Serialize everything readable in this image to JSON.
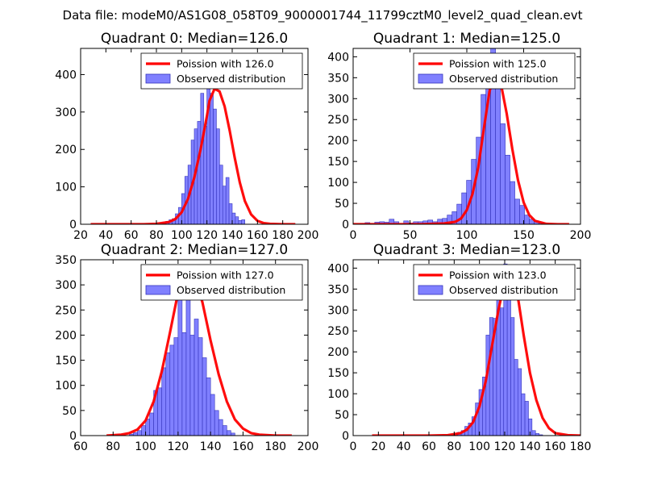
{
  "figure": {
    "title": "Data file: modeM0/AS1G08_058T09_9000001744_11799cztM0_level2_quad_clean.evt"
  },
  "colors": {
    "bar_fill": "#8080ff",
    "bar_edge": "#3333bb",
    "curve": "#ff0000",
    "axes": "#000000"
  },
  "chart_data": [
    {
      "type": "bar",
      "title": "Quadrant 0: Median=126.0",
      "legend": [
        "Poission with 126.0",
        "Observed distribution"
      ],
      "legend_loc": "top-right",
      "xlim": [
        20,
        200
      ],
      "ylim": [
        0,
        470
      ],
      "xticks": [
        20,
        40,
        60,
        80,
        100,
        120,
        140,
        160,
        180,
        200
      ],
      "yticks": [
        0,
        100,
        200,
        300,
        400
      ],
      "bins": {
        "edges_start": 85,
        "width": 2.5,
        "values": [
          5,
          8,
          12,
          15,
          28,
          45,
          82,
          128,
          158,
          225,
          255,
          275,
          350,
          262,
          370,
          350,
          308,
          255,
          158,
          102,
          125,
          55,
          30,
          20,
          10,
          12
        ]
      },
      "poisson": {
        "x": [
          28,
          40,
          60,
          70,
          80,
          90,
          95,
          100,
          105,
          110,
          115,
          120,
          122,
          126,
          130,
          134,
          138,
          142,
          146,
          150,
          155,
          160,
          165,
          170,
          180,
          190
        ],
        "y": [
          0,
          0,
          0,
          0,
          1,
          6,
          14,
          32,
          68,
          125,
          200,
          290,
          330,
          362,
          355,
          315,
          250,
          178,
          112,
          62,
          26,
          9,
          3,
          1,
          0,
          0
        ]
      }
    },
    {
      "type": "bar",
      "title": "Quadrant 1: Median=125.0",
      "legend": [
        "Poission with 125.0",
        "Observed distribution"
      ],
      "legend_loc": "top-right",
      "xlim": [
        0,
        200
      ],
      "ylim": [
        0,
        420
      ],
      "xticks": [
        0,
        50,
        100,
        150,
        200
      ],
      "yticks": [
        0,
        50,
        100,
        150,
        200,
        250,
        300,
        350,
        400
      ],
      "bins": {
        "edges_start": 2,
        "width": 4.25,
        "values": [
          0,
          2,
          4,
          0,
          5,
          6,
          5,
          12,
          6,
          0,
          8,
          3,
          6,
          6,
          8,
          10,
          6,
          12,
          14,
          22,
          30,
          48,
          75,
          105,
          155,
          208,
          310,
          380,
          420,
          335,
          240,
          165,
          102,
          60,
          45,
          22,
          12,
          8,
          4,
          2,
          0,
          0,
          0,
          0,
          0,
          0
        ]
      },
      "poisson": {
        "x": [
          0,
          20,
          60,
          80,
          90,
          95,
          100,
          105,
          110,
          115,
          120,
          125,
          130,
          135,
          140,
          145,
          150,
          155,
          160,
          170,
          180,
          190
        ],
        "y": [
          0,
          0,
          0,
          2,
          6,
          14,
          34,
          72,
          135,
          228,
          318,
          360,
          335,
          265,
          180,
          105,
          52,
          22,
          8,
          1,
          0,
          0
        ]
      }
    },
    {
      "type": "bar",
      "title": "Quadrant 2: Median=127.0",
      "legend": [
        "Poission with 127.0",
        "Observed distribution"
      ],
      "legend_loc": "top-right",
      "xlim": [
        60,
        200
      ],
      "ylim": [
        0,
        350
      ],
      "xticks": [
        60,
        80,
        100,
        120,
        140,
        160,
        180,
        200
      ],
      "yticks": [
        0,
        50,
        100,
        150,
        200,
        250,
        300,
        350
      ],
      "bins": {
        "edges_start": 90,
        "width": 2.5,
        "values": [
          3,
          6,
          10,
          20,
          33,
          45,
          90,
          95,
          135,
          165,
          180,
          195,
          275,
          205,
          320,
          200,
          232,
          195,
          155,
          115,
          82,
          50,
          32,
          20,
          10,
          5
        ]
      },
      "poisson": {
        "x": [
          76,
          85,
          90,
          95,
          100,
          105,
          110,
          115,
          120,
          125,
          127,
          130,
          135,
          140,
          145,
          150,
          155,
          160,
          165,
          170,
          180,
          190
        ],
        "y": [
          0,
          2,
          5,
          12,
          30,
          68,
          128,
          205,
          285,
          330,
          335,
          318,
          265,
          190,
          122,
          68,
          32,
          14,
          5,
          2,
          0,
          0
        ]
      }
    },
    {
      "type": "bar",
      "title": "Quadrant 3: Median=123.0",
      "legend": [
        "Poission with 123.0",
        "Observed distribution"
      ],
      "legend_loc": "top-right",
      "xlim": [
        0,
        180
      ],
      "ylim": [
        0,
        420
      ],
      "xticks": [
        0,
        20,
        40,
        60,
        80,
        100,
        120,
        140,
        160,
        180
      ],
      "yticks": [
        0,
        50,
        100,
        150,
        200,
        250,
        300,
        350,
        400
      ],
      "bins": {
        "edges_start": 80,
        "width": 2.8,
        "values": [
          5,
          8,
          12,
          22,
          30,
          45,
          78,
          110,
          140,
          240,
          282,
          280,
          375,
          305,
          410,
          400,
          282,
          182,
          160,
          100,
          82,
          40,
          12,
          5,
          2,
          0
        ]
      },
      "poisson": {
        "x": [
          15,
          40,
          60,
          75,
          85,
          90,
          95,
          100,
          105,
          110,
          115,
          120,
          123,
          127,
          131,
          135,
          140,
          145,
          150,
          155,
          160,
          170,
          180
        ],
        "y": [
          0,
          0,
          0,
          1,
          6,
          14,
          32,
          70,
          130,
          215,
          300,
          370,
          405,
          385,
          320,
          240,
          150,
          85,
          42,
          18,
          6,
          1,
          0
        ]
      }
    }
  ]
}
